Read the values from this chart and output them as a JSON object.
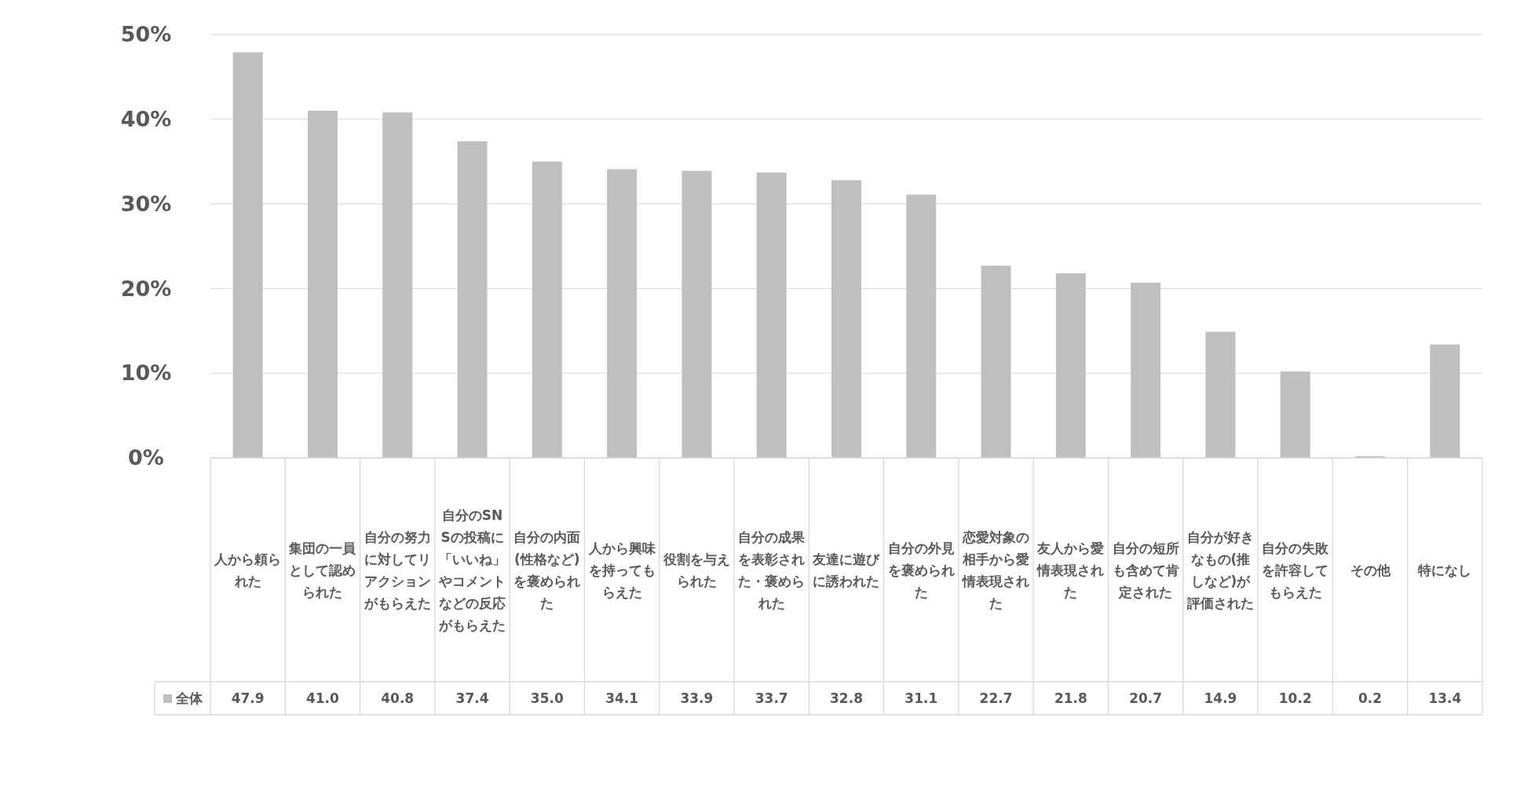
{
  "chart_data": {
    "type": "bar",
    "categories": [
      "人から頼られた",
      "集団の一員として認められた",
      "自分の努力に対してリアクションがもらえた",
      "自分のSNSの投稿に「いいね」やコメントなどの反応がもらえた",
      "自分の内面(性格など)を褒められた",
      "人から興味を持ってもらえた",
      "役割を与えられた",
      "自分の成果を表彰された・褒められた",
      "友達に遊びに誘われた",
      "自分の外見を褒められた",
      "恋愛対象の相手から愛情表現された",
      "友人から愛情表現された",
      "自分の短所も含めて肯定された",
      "自分が好きなもの(推しなど)が評価された",
      "自分の失敗を許容してもらえた",
      "その他",
      "特になし"
    ],
    "series": [
      {
        "name": "全体",
        "color": "#bfbfbf",
        "values": [
          47.9,
          41.0,
          40.8,
          37.4,
          35.0,
          34.1,
          33.9,
          33.7,
          32.8,
          31.1,
          22.7,
          21.8,
          20.7,
          14.9,
          10.2,
          0.2,
          13.4
        ],
        "value_labels": [
          "47.9",
          "41.0",
          "40.8",
          "37.4",
          "35.0",
          "34.1",
          "33.9",
          "33.7",
          "32.8",
          "31.1",
          "22.7",
          "21.8",
          "20.7",
          "14.9",
          "10.2",
          "0.2",
          "13.4"
        ]
      }
    ],
    "ylim": [
      0,
      50
    ],
    "yticks": [
      {
        "value": 0,
        "label": "0%"
      },
      {
        "value": 10,
        "label": "10%"
      },
      {
        "value": 20,
        "label": "20%"
      },
      {
        "value": 30,
        "label": "30%"
      },
      {
        "value": 40,
        "label": "40%"
      },
      {
        "value": 50,
        "label": "50%"
      }
    ],
    "grid": "y",
    "legend": "bottom"
  }
}
